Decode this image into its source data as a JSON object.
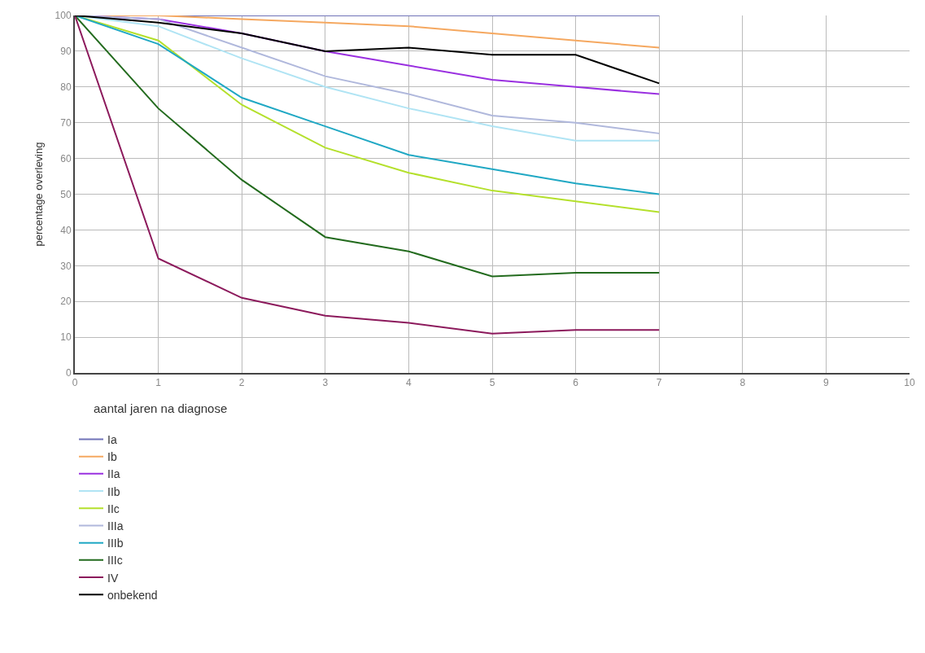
{
  "chart_data": {
    "type": "line",
    "xlabel": "aantal jaren na diagnose",
    "ylabel": "percentage overleving",
    "x": [
      0,
      1,
      2,
      3,
      4,
      5,
      6,
      7
    ],
    "series": [
      {
        "name": "Ia",
        "color": "#7073b8",
        "values": [
          100,
          100,
          100,
          100,
          100,
          100,
          100,
          100
        ]
      },
      {
        "name": "Ib",
        "color": "#f5a860",
        "values": [
          100,
          100,
          99,
          98,
          97,
          95,
          93,
          91
        ]
      },
      {
        "name": "IIa",
        "color": "#9a30e0",
        "values": [
          100,
          99,
          95,
          90,
          86,
          82,
          80,
          78
        ]
      },
      {
        "name": "IIb",
        "color": "#b0e4f4",
        "values": [
          100,
          97,
          88,
          80,
          74,
          69,
          65,
          65
        ]
      },
      {
        "name": "IIc",
        "color": "#b4e02c",
        "values": [
          100,
          93,
          75,
          63,
          56,
          51,
          48,
          45
        ]
      },
      {
        "name": "IIIa",
        "color": "#b0b8dc",
        "values": [
          100,
          99,
          91,
          83,
          78,
          72,
          70,
          67
        ]
      },
      {
        "name": "IIIb",
        "color": "#20a8c4",
        "values": [
          100,
          92,
          77,
          69,
          61,
          57,
          53,
          50
        ]
      },
      {
        "name": "IIIc",
        "color": "#236b1e",
        "values": [
          100,
          74,
          54,
          38,
          34,
          27,
          28,
          28
        ]
      },
      {
        "name": "IV",
        "color": "#8c1a5c",
        "values": [
          100,
          32,
          21,
          16,
          14,
          11,
          12,
          12
        ]
      },
      {
        "name": "onbekend",
        "color": "#000000",
        "values": [
          100,
          98,
          95,
          90,
          91,
          89,
          89,
          81
        ]
      }
    ],
    "xlim": [
      0,
      10
    ],
    "xticks": [
      0,
      1,
      2,
      3,
      4,
      5,
      6,
      7,
      8,
      9,
      10
    ],
    "ylim": [
      0,
      100
    ],
    "yticks": [
      0,
      10,
      20,
      30,
      40,
      50,
      60,
      70,
      80,
      90,
      100
    ],
    "grid": true,
    "legend": "bottom left",
    "marker": "none",
    "line_style": "solid"
  }
}
